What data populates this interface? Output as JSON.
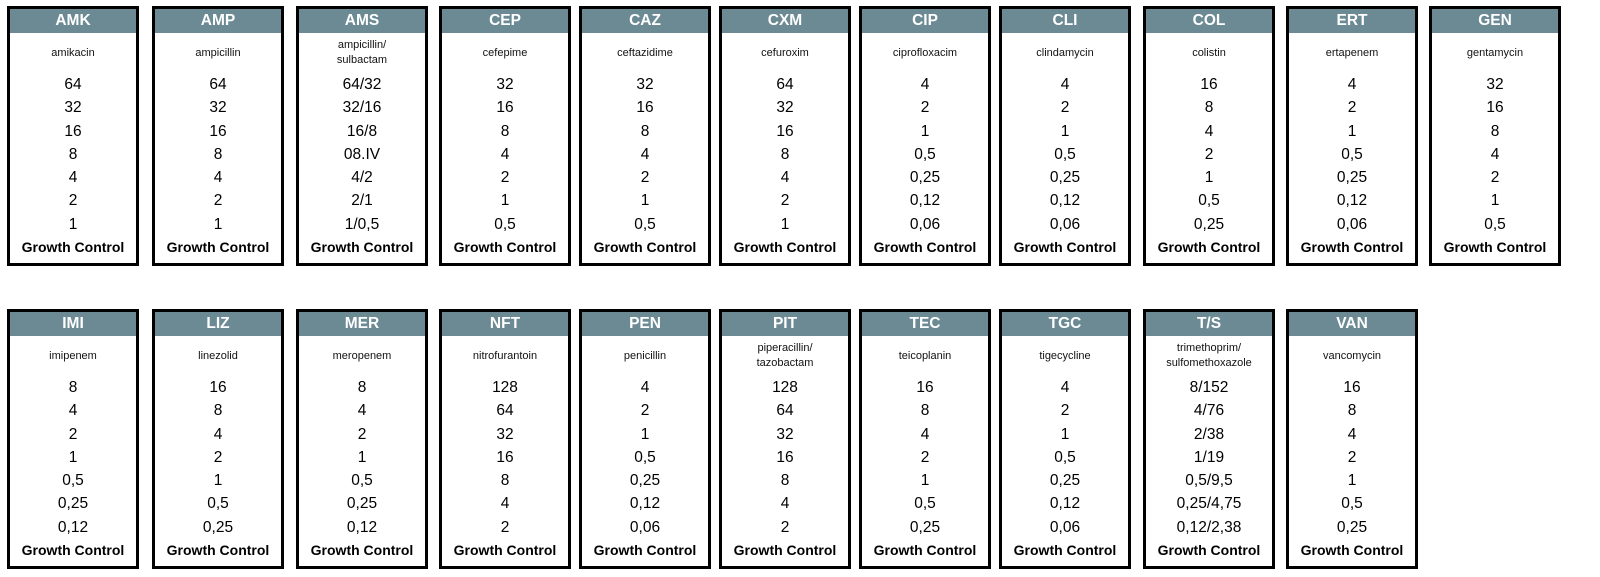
{
  "panels": [
    {
      "code": "AMK",
      "name": "amikacin",
      "values": [
        "64",
        "32",
        "16",
        "8",
        "4",
        "2",
        "1"
      ]
    },
    {
      "code": "AMP",
      "name": "ampicillin",
      "values": [
        "64",
        "32",
        "16",
        "8",
        "4",
        "2",
        "1"
      ]
    },
    {
      "code": "AMS",
      "name": "ampicillin/ sulbactam",
      "values": [
        "64/32",
        "32/16",
        "16/8",
        "08.IV",
        "4/2",
        "2/1",
        "1/0,5"
      ]
    },
    {
      "code": "CEP",
      "name": "cefepime",
      "values": [
        "32",
        "16",
        "8",
        "4",
        "2",
        "1",
        "0,5"
      ]
    },
    {
      "code": "CAZ",
      "name": "ceftazidime",
      "values": [
        "32",
        "16",
        "8",
        "4",
        "2",
        "1",
        "0,5"
      ]
    },
    {
      "code": "CXM",
      "name": "cefuroxim",
      "values": [
        "64",
        "32",
        "16",
        "8",
        "4",
        "2",
        "1"
      ]
    },
    {
      "code": "CIP",
      "name": "ciprofloxacim",
      "values": [
        "4",
        "2",
        "1",
        "0,5",
        "0,25",
        "0,12",
        "0,06"
      ]
    },
    {
      "code": "CLI",
      "name": "clindamycin",
      "values": [
        "4",
        "2",
        "1",
        "0,5",
        "0,25",
        "0,12",
        "0,06"
      ]
    },
    {
      "code": "COL",
      "name": "colistin",
      "values": [
        "16",
        "8",
        "4",
        "2",
        "1",
        "0,5",
        "0,25"
      ]
    },
    {
      "code": "ERT",
      "name": "ertapenem",
      "values": [
        "4",
        "2",
        "1",
        "0,5",
        "0,25",
        "0,12",
        "0,06"
      ]
    },
    {
      "code": "GEN",
      "name": "gentamycin",
      "values": [
        "32",
        "16",
        "8",
        "4",
        "2",
        "1",
        "0,5"
      ]
    },
    {
      "code": "IMI",
      "name": "imipenem",
      "values": [
        "8",
        "4",
        "2",
        "1",
        "0,5",
        "0,25",
        "0,12"
      ]
    },
    {
      "code": "LIZ",
      "name": "linezolid",
      "values": [
        "16",
        "8",
        "4",
        "2",
        "1",
        "0,5",
        "0,25"
      ]
    },
    {
      "code": "MER",
      "name": "meropenem",
      "values": [
        "8",
        "4",
        "2",
        "1",
        "0,5",
        "0,25",
        "0,12"
      ]
    },
    {
      "code": "NFT",
      "name": "nitrofurantoin",
      "values": [
        "128",
        "64",
        "32",
        "16",
        "8",
        "4",
        "2"
      ]
    },
    {
      "code": "PEN",
      "name": "penicillin",
      "values": [
        "4",
        "2",
        "1",
        "0,5",
        "0,25",
        "0,12",
        "0,06"
      ]
    },
    {
      "code": "PIT",
      "name": "piperacillin/ tazobactam",
      "values": [
        "128",
        "64",
        "32",
        "16",
        "8",
        "4",
        "2"
      ]
    },
    {
      "code": "TEC",
      "name": "teicoplanin",
      "values": [
        "16",
        "8",
        "4",
        "2",
        "1",
        "0,5",
        "0,25"
      ]
    },
    {
      "code": "TGC",
      "name": "tigecycline",
      "values": [
        "4",
        "2",
        "1",
        "0,5",
        "0,25",
        "0,12",
        "0,06"
      ]
    },
    {
      "code": "T/S",
      "name": "trimethoprim/ sulfomethoxazole",
      "values": [
        "8/152",
        "4/76",
        "2/38",
        "1/19",
        "0,5/9,5",
        "0,25/4,75",
        "0,12/2,38"
      ]
    },
    {
      "code": "VAN",
      "name": "vancomycin",
      "values": [
        "16",
        "8",
        "4",
        "2",
        "1",
        "0,5",
        "0,25"
      ]
    }
  ],
  "growth_control_label": "Growth Control"
}
